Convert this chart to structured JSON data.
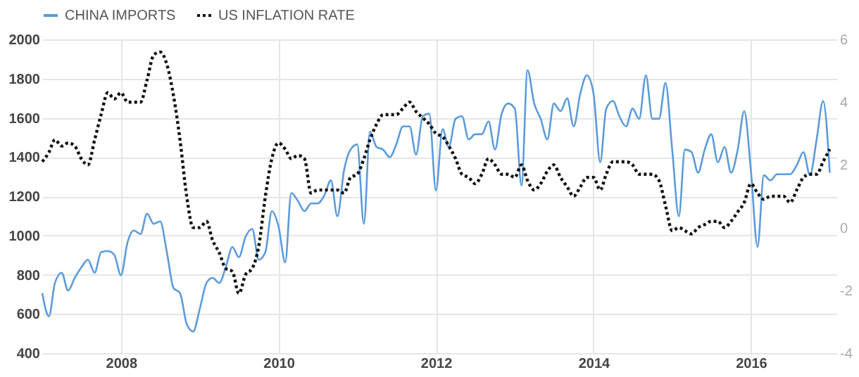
{
  "chart_data": {
    "type": "line",
    "x": [
      "2007-01",
      "2007-02",
      "2007-03",
      "2007-04",
      "2007-05",
      "2007-06",
      "2007-07",
      "2007-08",
      "2007-09",
      "2007-10",
      "2007-11",
      "2007-12",
      "2008-01",
      "2008-02",
      "2008-03",
      "2008-04",
      "2008-05",
      "2008-06",
      "2008-07",
      "2008-08",
      "2008-09",
      "2008-10",
      "2008-11",
      "2008-12",
      "2009-01",
      "2009-02",
      "2009-03",
      "2009-04",
      "2009-05",
      "2009-06",
      "2009-07",
      "2009-08",
      "2009-09",
      "2009-10",
      "2009-11",
      "2009-12",
      "2010-01",
      "2010-02",
      "2010-03",
      "2010-04",
      "2010-05",
      "2010-06",
      "2010-07",
      "2010-08",
      "2010-09",
      "2010-10",
      "2010-11",
      "2010-12",
      "2011-01",
      "2011-02",
      "2011-03",
      "2011-04",
      "2011-05",
      "2011-06",
      "2011-07",
      "2011-08",
      "2011-09",
      "2011-10",
      "2011-11",
      "2011-12",
      "2012-01",
      "2012-02",
      "2012-03",
      "2012-04",
      "2012-05",
      "2012-06",
      "2012-07",
      "2012-08",
      "2012-09",
      "2012-10",
      "2012-11",
      "2012-12",
      "2013-01",
      "2013-02",
      "2013-03",
      "2013-04",
      "2013-05",
      "2013-06",
      "2013-07",
      "2013-08",
      "2013-09",
      "2013-10",
      "2013-11",
      "2013-12",
      "2014-01",
      "2014-02",
      "2014-03",
      "2014-04",
      "2014-05",
      "2014-06",
      "2014-07",
      "2014-08",
      "2014-09",
      "2014-10",
      "2014-11",
      "2014-12",
      "2015-01",
      "2015-02",
      "2015-03",
      "2015-04",
      "2015-05",
      "2015-06",
      "2015-07",
      "2015-08",
      "2015-09",
      "2015-10",
      "2015-11",
      "2015-12",
      "2016-01",
      "2016-02",
      "2016-03",
      "2016-04",
      "2016-05",
      "2016-06",
      "2016-07",
      "2016-08",
      "2016-09",
      "2016-10",
      "2016-11",
      "2016-12",
      "2017-01"
    ],
    "series": [
      {
        "name": "CHINA IMPORTS",
        "color": "#5b9bdc",
        "line_style": "solid",
        "values": [
          706,
          588,
          758,
          810,
          719,
          784,
          837,
          876,
          810,
          915,
          920,
          902,
          797,
          967,
          1025,
          1007,
          1111,
          1059,
          1072,
          915,
          732,
          706,
          549,
          510,
          627,
          758,
          784,
          758,
          837,
          941,
          889,
          993,
          1033,
          876,
          915,
          1124,
          1046,
          863,
          1216,
          1176,
          1124,
          1163,
          1163,
          1203,
          1281,
          1098,
          1333,
          1438,
          1464,
          1059,
          1529,
          1451,
          1438,
          1399,
          1464,
          1556,
          1556,
          1412,
          1608,
          1621,
          1229,
          1542,
          1451,
          1595,
          1608,
          1490,
          1516,
          1516,
          1582,
          1438,
          1621,
          1673,
          1647,
          1255,
          1843,
          1673,
          1595,
          1490,
          1673,
          1634,
          1699,
          1556,
          1725,
          1817,
          1725,
          1373,
          1647,
          1686,
          1608,
          1556,
          1647,
          1595,
          1817,
          1595,
          1595,
          1778,
          1438,
          1098,
          1438,
          1425,
          1320,
          1438,
          1516,
          1373,
          1451,
          1320,
          1438,
          1634,
          1333,
          941,
          1307,
          1281,
          1312,
          1312,
          1312,
          1359,
          1425,
          1307,
          1490,
          1686,
          1320
        ]
      },
      {
        "name": "US INFLATION RATE",
        "color": "#111111",
        "line_style": "dotted",
        "axis": "y2",
        "values": [
          2.1,
          2.4,
          2.8,
          2.6,
          2.7,
          2.6,
          2.2,
          2.0,
          2.8,
          3.6,
          4.3,
          4.1,
          4.3,
          4.0,
          4.0,
          4.0,
          4.7,
          5.5,
          5.6,
          5.2,
          4.2,
          2.8,
          1.0,
          0.0,
          0.0,
          0.2,
          -0.4,
          -0.8,
          -1.3,
          -1.4,
          -2.1,
          -1.5,
          -1.3,
          -0.6,
          1.0,
          2.2,
          2.7,
          2.5,
          2.2,
          2.3,
          2.2,
          1.1,
          1.2,
          1.2,
          1.2,
          1.2,
          1.1,
          1.6,
          1.7,
          2.2,
          2.8,
          3.3,
          3.6,
          3.6,
          3.6,
          3.8,
          4.0,
          3.7,
          3.5,
          3.3,
          3.0,
          2.9,
          2.6,
          2.2,
          1.7,
          1.6,
          1.4,
          1.7,
          2.2,
          2.0,
          1.7,
          1.7,
          1.6,
          2.0,
          1.5,
          1.2,
          1.4,
          1.8,
          2.0,
          1.6,
          1.3,
          1.0,
          1.3,
          1.6,
          1.6,
          1.2,
          1.7,
          2.1,
          2.1,
          2.1,
          2.0,
          1.7,
          1.7,
          1.7,
          1.5,
          0.7,
          -0.1,
          0.0,
          -0.1,
          -0.2,
          0.0,
          0.1,
          0.2,
          0.2,
          0.0,
          0.2,
          0.5,
          0.8,
          1.4,
          1.1,
          0.9,
          1.0,
          1.0,
          1.0,
          0.8,
          1.2,
          1.6,
          1.7,
          1.7,
          2.1,
          2.5
        ]
      }
    ],
    "xlim": [
      "2007-01",
      "2017-02"
    ],
    "xticks": [
      "2008",
      "2010",
      "2012",
      "2014",
      "2016"
    ],
    "ylim": [
      400,
      2000
    ],
    "yticks": [
      400,
      600,
      800,
      1000,
      1200,
      1400,
      1600,
      1800,
      2000
    ],
    "y2lim": [
      -4,
      6
    ],
    "y2ticks": [
      -4,
      -2,
      0,
      2,
      4,
      6
    ],
    "grid": true,
    "legend": "top left",
    "marker": "none"
  }
}
